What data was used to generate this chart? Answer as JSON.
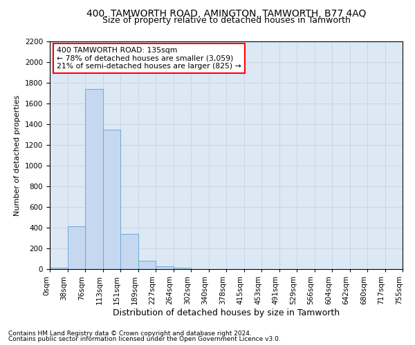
{
  "title1": "400, TAMWORTH ROAD, AMINGTON, TAMWORTH, B77 4AQ",
  "title2": "Size of property relative to detached houses in Tamworth",
  "xlabel": "Distribution of detached houses by size in Tamworth",
  "ylabel": "Number of detached properties",
  "footer1": "Contains HM Land Registry data © Crown copyright and database right 2024.",
  "footer2": "Contains public sector information licensed under the Open Government Licence v3.0.",
  "bin_labels": [
    "0sqm",
    "38sqm",
    "76sqm",
    "113sqm",
    "151sqm",
    "189sqm",
    "227sqm",
    "264sqm",
    "302sqm",
    "340sqm",
    "378sqm",
    "415sqm",
    "453sqm",
    "491sqm",
    "529sqm",
    "566sqm",
    "604sqm",
    "642sqm",
    "680sqm",
    "717sqm",
    "755sqm"
  ],
  "bar_values": [
    15,
    415,
    1740,
    1350,
    340,
    80,
    25,
    15,
    0,
    0,
    0,
    0,
    0,
    0,
    0,
    0,
    0,
    0,
    0,
    0
  ],
  "bar_color": "#c5d8f0",
  "bar_edge_color": "#6aaad4",
  "annotation_text": "400 TAMWORTH ROAD: 135sqm\n← 78% of detached houses are smaller (3,059)\n21% of semi-detached houses are larger (825) →",
  "annotation_box_color": "white",
  "annotation_box_edge_color": "red",
  "ylim": [
    0,
    2200
  ],
  "yticks": [
    0,
    200,
    400,
    600,
    800,
    1000,
    1200,
    1400,
    1600,
    1800,
    2000,
    2200
  ],
  "grid_color": "#c8d4e8",
  "background_color": "#dde8f5",
  "title1_fontsize": 10,
  "title2_fontsize": 9,
  "xlabel_fontsize": 9,
  "ylabel_fontsize": 8,
  "tick_fontsize": 7.5,
  "footer_fontsize": 6.5
}
